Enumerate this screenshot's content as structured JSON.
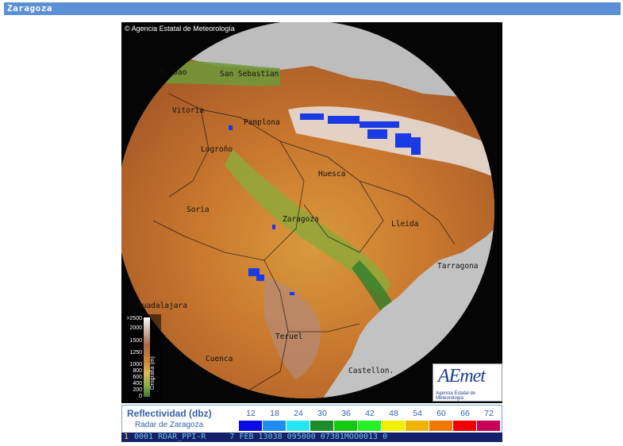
{
  "header": {
    "title": "Zaragoza"
  },
  "map": {
    "credit": "Agencia Estatal de Meteorología",
    "copyright_symbol": "©",
    "cities": [
      "Bilbao",
      "San Sebastian",
      "Vitoria",
      "Pamplona",
      "Logroño",
      "Huesca",
      "Soria",
      "Zaragoza",
      "Lleida",
      "Tarragona",
      "Guadalajara",
      "Teruel",
      "Cuenca",
      "Castellon."
    ],
    "logo": {
      "text": "AEmet",
      "subtitle": "Agencia Estatal de Meteorología"
    },
    "orography_scale": {
      "label": "Orografía (m)",
      "ticks": [
        ">2500",
        "2000",
        "1500",
        "1250",
        "1000",
        "800",
        "600",
        "400",
        "200",
        "0"
      ]
    }
  },
  "legend": {
    "title": "Reflectividad (dbz)",
    "subtitle": "Radar de Zaragoza",
    "levels": [
      {
        "value": "12",
        "color": "#0a0ae6"
      },
      {
        "value": "18",
        "color": "#1e8cf0"
      },
      {
        "value": "24",
        "color": "#28e6f0"
      },
      {
        "value": "30",
        "color": "#1e8c28"
      },
      {
        "value": "36",
        "color": "#14c814"
      },
      {
        "value": "42",
        "color": "#28f028"
      },
      {
        "value": "48",
        "color": "#f0f000"
      },
      {
        "value": "54",
        "color": "#f0b400"
      },
      {
        "value": "60",
        "color": "#f07800"
      },
      {
        "value": "66",
        "color": "#f00000"
      },
      {
        "value": "72",
        "color": "#c8005a"
      }
    ]
  },
  "status_bar": {
    "highlight": "1",
    "text": "0001 RDAR_PPI-R     7 FEB 13038 095000 07381MOO0013 0"
  },
  "colors": {
    "header_bg": "#5c8fd6",
    "legend_text": "#3462a8",
    "status_bg": "#15206a",
    "echo_blue": "#1a3ae6"
  }
}
